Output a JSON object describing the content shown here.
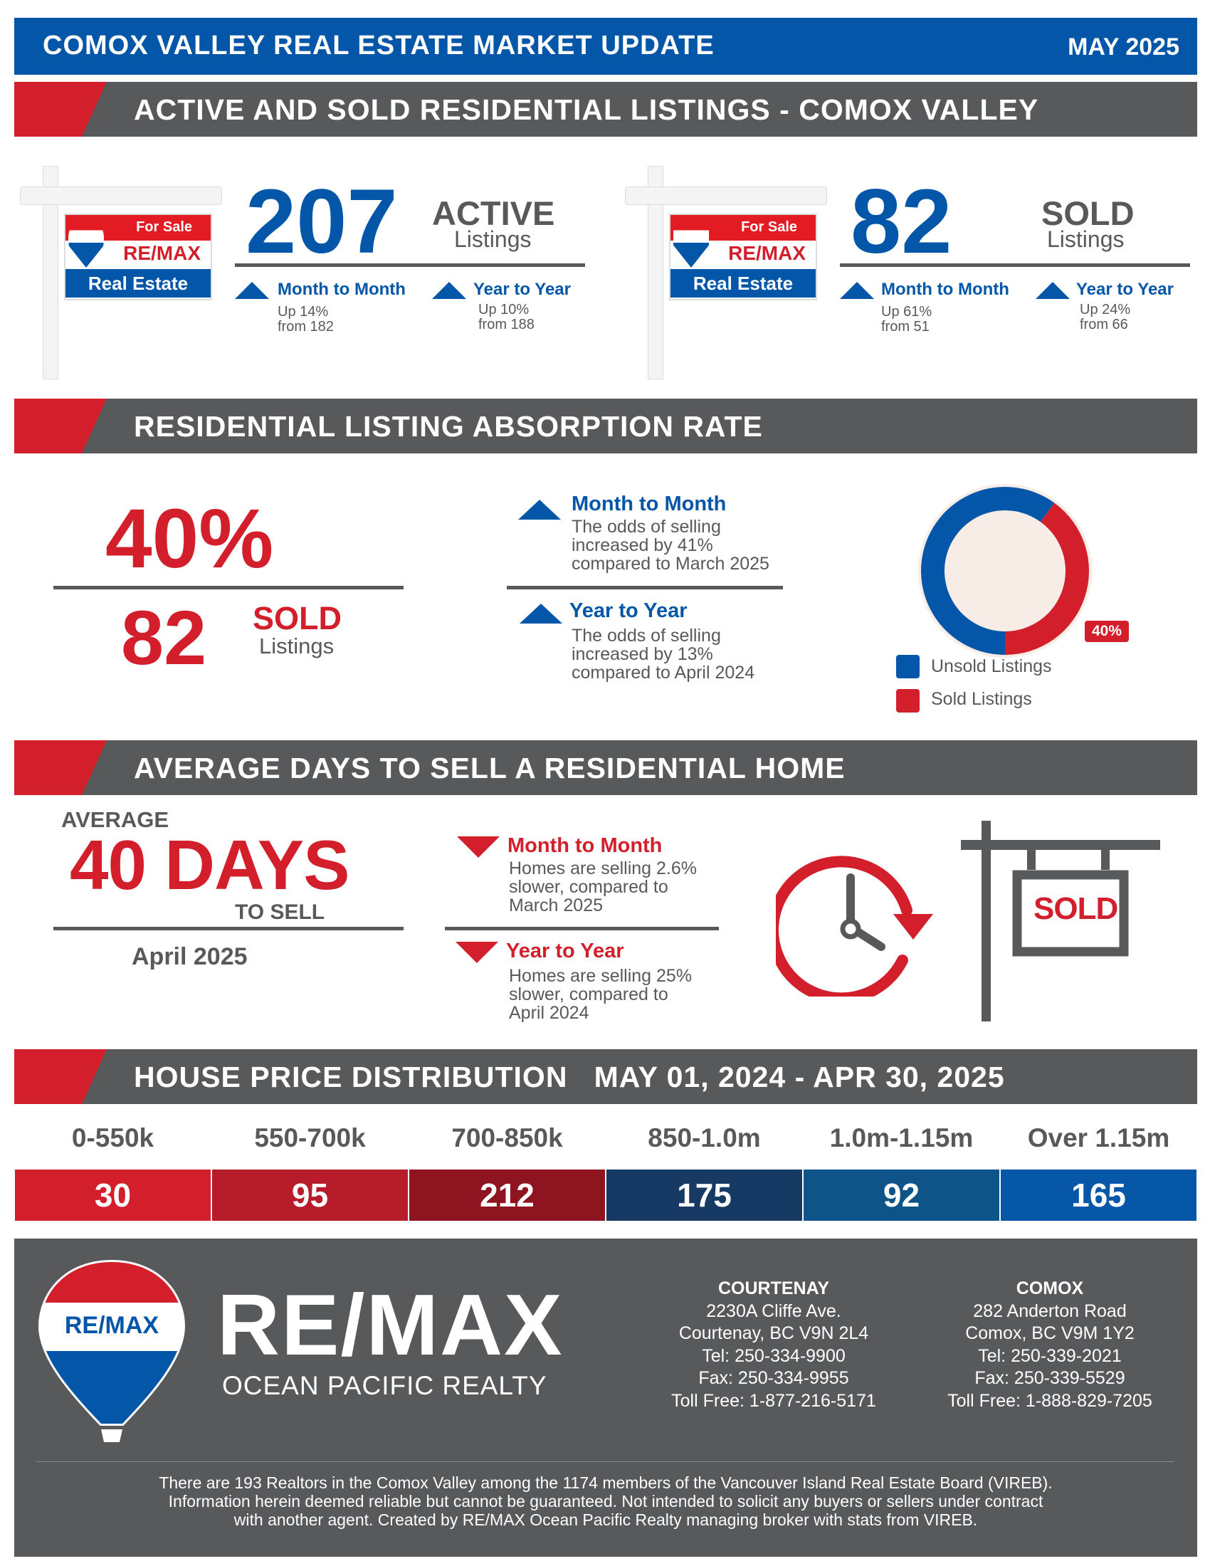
{
  "header": {
    "title": "COMOX VALLEY REAL ESTATE MARKET UPDATE",
    "date": "MAY 2025"
  },
  "sections": {
    "listings": "ACTIVE AND SOLD RESIDENTIAL LISTINGS - COMOX VALLEY",
    "absorption": "RESIDENTIAL LISTING ABSORPTION RATE",
    "days": "AVERAGE DAYS TO SELL A RESIDENTIAL HOME",
    "price": "HOUSE PRICE DISTRIBUTION   MAY 01, 2024 - APR 30, 2025"
  },
  "sign": {
    "for_sale": "For Sale",
    "brand": "RE/MAX",
    "real_estate": "Real Estate",
    "mini": "RE/MAX"
  },
  "active": {
    "value": "207",
    "label": "ACTIVE",
    "sub": "Listings",
    "mtm": {
      "title": "Month to Month",
      "l1": "Up 14%",
      "l2": "from 182"
    },
    "yty": {
      "title": "Year to Year",
      "l1": "Up 10%",
      "l2": "from 188"
    }
  },
  "sold": {
    "value": "82",
    "label": "SOLD",
    "sub": "Listings",
    "mtm": {
      "title": "Month to Month",
      "l1": "Up 61%",
      "l2": "from 51"
    },
    "yty": {
      "title": "Year to Year",
      "l1": "Up 24%",
      "l2": "from 66"
    }
  },
  "absorption": {
    "rate": "40%",
    "sold_value": "82",
    "sold_label": "SOLD",
    "sold_sub": "Listings",
    "mtm": {
      "title": "Month to Month",
      "l1": "The odds of selling",
      "l2": "increased by 41%",
      "l3": "compared to March 2025"
    },
    "yty": {
      "title": "Year to Year",
      "l1": "The odds of selling",
      "l2": "increased by 13%",
      "l3": "compared to April 2024"
    },
    "donut_label": "40%",
    "legend_unsold": "Unsold Listings",
    "legend_sold": "Sold Listings"
  },
  "chart_data": {
    "type": "pie",
    "categories": [
      "Unsold Listings",
      "Sold Listings"
    ],
    "values": [
      60,
      40
    ],
    "colors": [
      "#0457a8",
      "#d21f2b"
    ]
  },
  "days": {
    "average": "AVERAGE",
    "value": "40 DAYS",
    "to_sell": "TO SELL",
    "period": "April 2025",
    "mtm": {
      "title": "Month to Month",
      "l1": "Homes are selling 2.6%",
      "l2": "slower, compared to",
      "l3": "March 2025"
    },
    "yty": {
      "title": "Year to Year",
      "l1": "Homes are selling 25%",
      "l2": "slower, compared to",
      "l3": "April 2024"
    },
    "sign_text": "SOLD"
  },
  "price": [
    {
      "range": "0-550k",
      "count": "30",
      "color": "#d21f2b"
    },
    {
      "range": "550-700k",
      "count": "95",
      "color": "#b71c2b"
    },
    {
      "range": "700-850k",
      "count": "212",
      "color": "#8e1520"
    },
    {
      "range": "850-1.0m",
      "count": "175",
      "color": "#173a64"
    },
    {
      "range": "1.0m-1.15m",
      "count": "92",
      "color": "#0f5488"
    },
    {
      "range": "Over 1.15m",
      "count": "165",
      "color": "#0757a8"
    }
  ],
  "footer": {
    "balloon_text": "RE/MAX",
    "brand": "RE/MAX",
    "tagline": "OCEAN PACIFIC REALTY",
    "offices": [
      {
        "name": "COURTENAY",
        "addr1": "2230A Cliffe Ave.",
        "addr2": "Courtenay, BC V9N 2L4",
        "tel": "Tel: 250-334-9900",
        "fax": "Fax: 250-334-9955",
        "toll": "Toll Free: 1-877-216-5171"
      },
      {
        "name": "COMOX",
        "addr1": "282 Anderton Road",
        "addr2": "Comox, BC V9M 1Y2",
        "tel": "Tel: 250-339-2021",
        "fax": "Fax: 250-339-5529",
        "toll": "Toll Free: 1-888-829-7205"
      }
    ],
    "disclaimer": [
      "There are 193 Realtors in the Comox Valley among the 1174 members of the Vancouver Island Real Estate Board (VIREB).",
      "Information herein deemed reliable but cannot be guaranteed. Not intended to solicit any buyers or sellers under contract",
      "with another agent.   Created by RE/MAX Ocean Pacific Realty managing broker with stats from VIREB."
    ]
  }
}
